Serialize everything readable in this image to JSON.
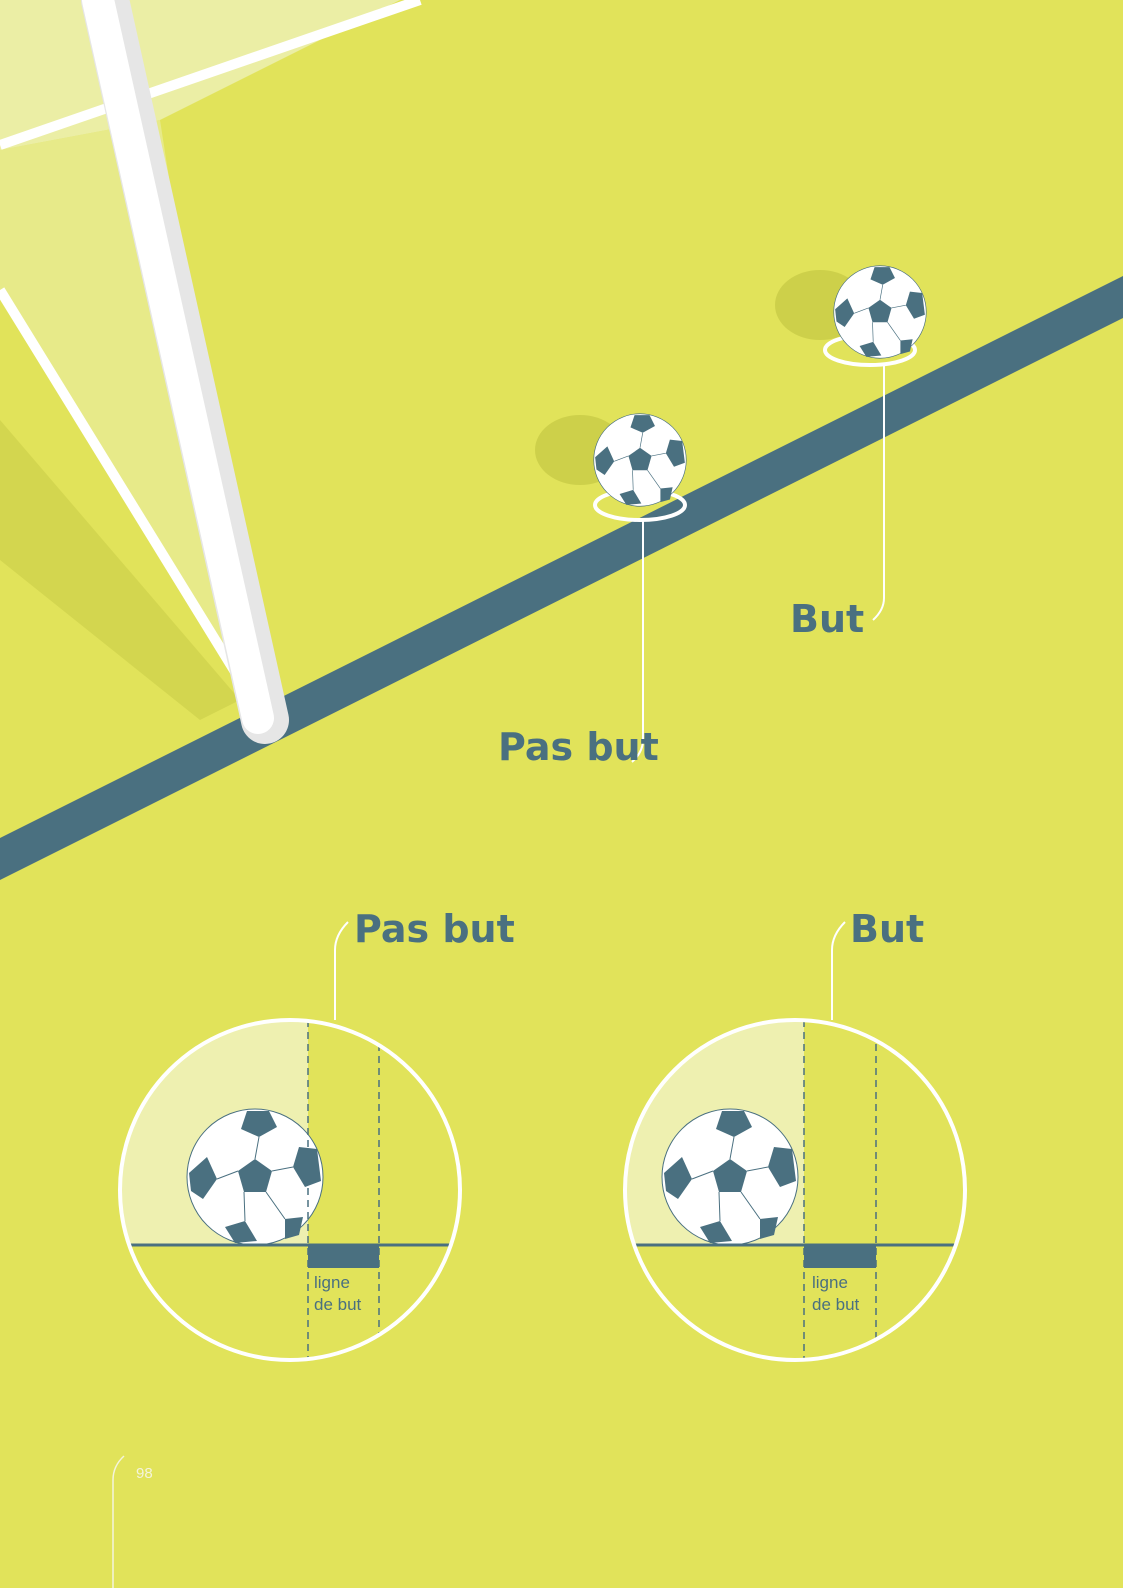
{
  "scene": {
    "labels": [
      "Pas but",
      "But"
    ]
  },
  "diagrams": [
    {
      "title": "Pas but",
      "line_label": [
        "ligne",
        "de but"
      ]
    },
    {
      "title": "But",
      "line_label": [
        "ligne",
        "de but"
      ]
    }
  ],
  "page_number": "98"
}
